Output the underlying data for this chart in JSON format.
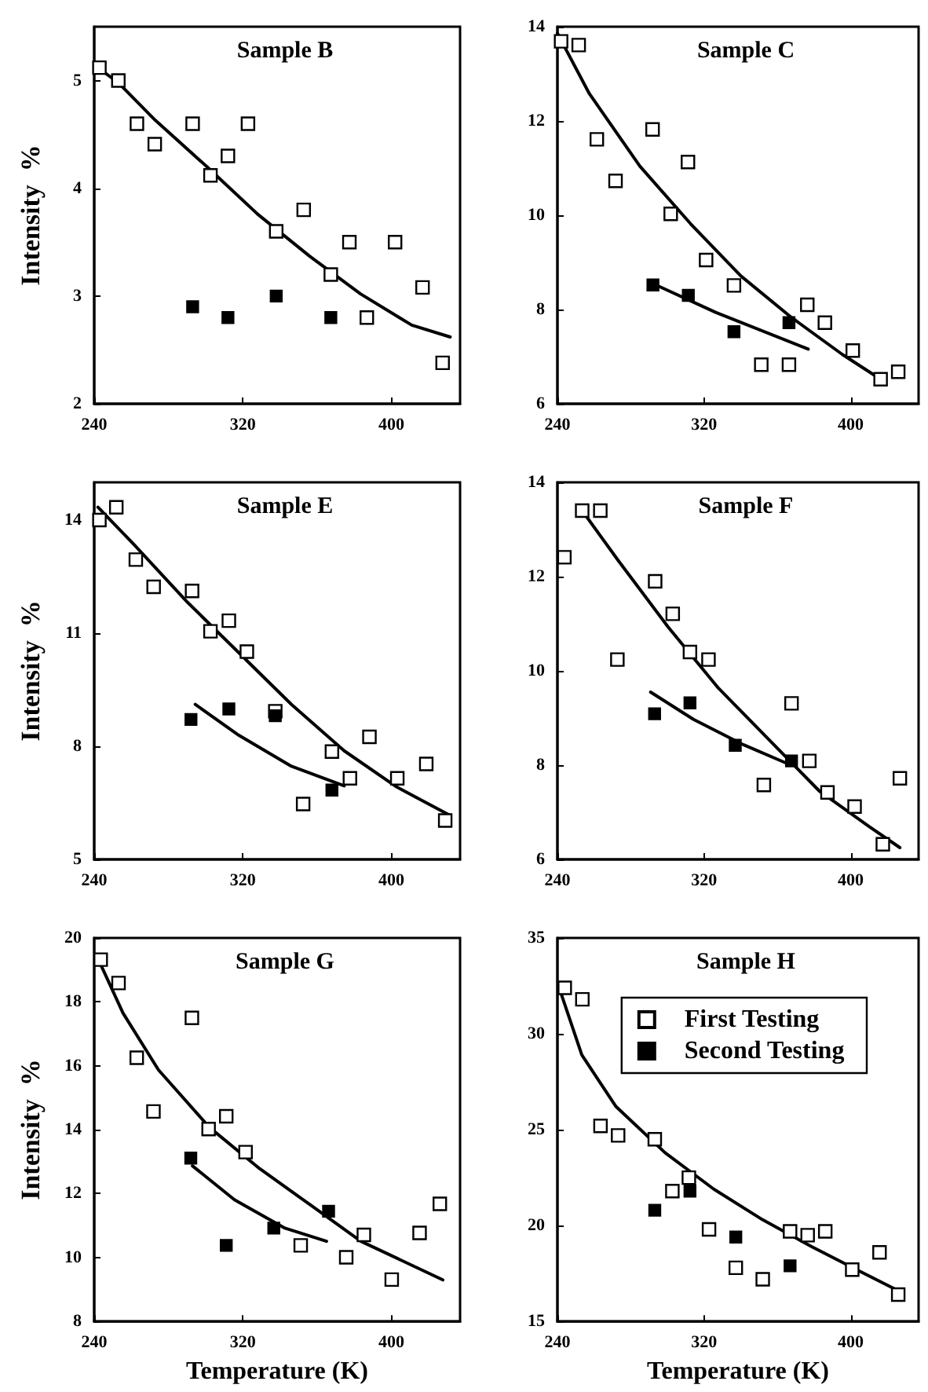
{
  "chart_data": [
    {
      "type": "scatter",
      "title": "Sample B",
      "ylabel": "Intensity  %",
      "marker": "square",
      "xlim": [
        240,
        437
      ],
      "xticks": [
        240,
        320,
        400
      ],
      "ylim": [
        2,
        5.5
      ],
      "yticks": [
        2,
        3,
        4,
        5
      ],
      "series": [
        {
          "color": "#ffffff",
          "x": [
            242.8,
            253,
            263,
            272.6,
            293,
            302.6,
            312,
            322.8,
            338,
            352.8,
            367.4,
            377.4,
            386.8,
            402,
            416.8,
            427.6
          ],
          "values": [
            5.12,
            5.0,
            4.6,
            4.41,
            4.6,
            4.12,
            4.3,
            4.6,
            3.6,
            3.8,
            3.2,
            3.5,
            2.8,
            3.5,
            3.08,
            2.38
          ]
        },
        {
          "color": "#000000",
          "x": [
            293,
            312,
            338,
            367.4
          ],
          "values": [
            2.9,
            2.8,
            3.0,
            2.8
          ]
        },
        {
          "type": "line",
          "marker": "none",
          "color": "#000000",
          "x": [
            242.8,
            253,
            273,
            300.7,
            328,
            356,
            383.4,
            411,
            431.7
          ],
          "values": [
            5.11,
            4.98,
            4.63,
            4.2,
            3.76,
            3.37,
            3.02,
            2.73,
            2.62
          ]
        }
      ]
    },
    {
      "type": "scatter",
      "title": "Sample C",
      "marker": "square",
      "xlim": [
        240,
        437
      ],
      "xticks": [
        240,
        320,
        400
      ],
      "ylim": [
        6,
        14
      ],
      "yticks": [
        6,
        8,
        10,
        12,
        14
      ],
      "series": [
        {
          "color": "#ffffff",
          "x": [
            242,
            251.6,
            261.5,
            271.7,
            291.9,
            301.8,
            311.2,
            321.1,
            336.3,
            351.2,
            366.3,
            376.3,
            385.9,
            401.1,
            416.3,
            425.9
          ],
          "values": [
            13.69,
            13.61,
            11.61,
            10.73,
            11.82,
            10.03,
            11.13,
            9.05,
            8.51,
            6.83,
            6.83,
            8.1,
            7.72,
            7.13,
            6.52,
            6.68
          ]
        },
        {
          "color": "#000000",
          "x": [
            292.1,
            311.4,
            336.3,
            366.3
          ],
          "values": [
            8.52,
            8.3,
            7.53,
            7.72
          ]
        },
        {
          "type": "line",
          "marker": "none",
          "color": "#000000",
          "x": [
            240,
            257.4,
            285,
            312.6,
            340.1,
            367.7,
            395.3,
            416.3
          ],
          "values": [
            13.86,
            12.58,
            11.04,
            9.82,
            8.71,
            7.83,
            7.05,
            6.52
          ]
        },
        {
          "type": "line",
          "marker": "none",
          "color": "#000000",
          "x": [
            292.1,
            326.3,
            376.8
          ],
          "values": [
            8.55,
            7.94,
            7.16
          ]
        }
      ]
    },
    {
      "type": "scatter",
      "title": "Sample E",
      "ylabel": "Intensity  %",
      "marker": "square",
      "xlim": [
        240,
        437
      ],
      "xticks": [
        240,
        320,
        400
      ],
      "ylim": [
        5,
        15
      ],
      "yticks": [
        5,
        8,
        11,
        14
      ],
      "series": [
        {
          "color": "#ffffff",
          "x": [
            242.8,
            251.9,
            262.4,
            272,
            292.7,
            302.6,
            312.5,
            322.2,
            337.5,
            352.5,
            368,
            377.7,
            388.2,
            403.2,
            418.8,
            429
          ],
          "values": [
            14.0,
            14.34,
            12.95,
            12.23,
            12.12,
            11.05,
            11.33,
            10.51,
            8.93,
            6.47,
            7.86,
            7.15,
            8.25,
            7.15,
            7.53,
            6.03
          ]
        },
        {
          "color": "#000000",
          "x": [
            292.1,
            312.5,
            337.5,
            368
          ],
          "values": [
            8.71,
            8.99,
            8.81,
            6.84
          ]
        },
        {
          "type": "line",
          "marker": "none",
          "color": "#000000",
          "x": [
            242,
            261.2,
            289.6,
            317.9,
            346.2,
            374.6,
            402.9,
            431.8
          ],
          "values": [
            14.34,
            13.36,
            11.85,
            10.48,
            9.11,
            7.88,
            6.92,
            6.16
          ]
        },
        {
          "type": "line",
          "marker": "none",
          "color": "#000000",
          "x": [
            294.4,
            317.9,
            346.2,
            374.6
          ],
          "values": [
            9.11,
            8.29,
            7.47,
            6.95
          ]
        }
      ]
    },
    {
      "type": "scatter",
      "title": "Sample F",
      "marker": "square",
      "xlim": [
        240,
        437
      ],
      "xticks": [
        240,
        320,
        400
      ],
      "ylim": [
        6,
        14
      ],
      "yticks": [
        6,
        8,
        10,
        12,
        14
      ],
      "series": [
        {
          "color": "#ffffff",
          "x": [
            243.8,
            253.5,
            263.4,
            272.7,
            293.3,
            302.9,
            312.3,
            322.4,
            352.6,
            367.7,
            377.4,
            387.3,
            402.1,
            417.5,
            426.8
          ],
          "values": [
            12.41,
            13.4,
            13.4,
            10.24,
            11.9,
            11.21,
            10.4,
            10.24,
            7.58,
            9.31,
            8.09,
            7.42,
            7.12,
            6.32,
            7.72
          ]
        },
        {
          "color": "#000000",
          "x": [
            293,
            312.3,
            337,
            367.7
          ],
          "values": [
            9.09,
            9.32,
            8.42,
            8.09
          ]
        },
        {
          "type": "line",
          "marker": "none",
          "color": "#000000",
          "x": [
            253.5,
            273,
            300.4,
            327.9,
            355.4,
            382.9,
            410.3,
            426.8
          ],
          "values": [
            13.4,
            12.35,
            10.93,
            9.63,
            8.54,
            7.45,
            6.69,
            6.25
          ]
        },
        {
          "type": "line",
          "marker": "none",
          "color": "#000000",
          "x": [
            290.8,
            314.2,
            341.6,
            364.4
          ],
          "values": [
            9.55,
            8.97,
            8.43,
            8.05
          ]
        }
      ]
    },
    {
      "type": "scatter",
      "title": "Sample G",
      "xlabel": "Temperature (K)",
      "ylabel": "Intensity  %",
      "marker": "square",
      "xlim": [
        240,
        437
      ],
      "xticks": [
        240,
        320,
        400
      ],
      "ylim": [
        8,
        20
      ],
      "yticks": [
        8,
        10,
        12,
        14,
        16,
        18,
        20
      ],
      "series": [
        {
          "color": "#ffffff",
          "x": [
            243.5,
            253.1,
            262.9,
            271.9,
            292.6,
            301.6,
            311.1,
            321.5,
            351.2,
            375.7,
            385.2,
            400.2,
            415.2,
            426.1
          ],
          "values": [
            19.32,
            18.59,
            16.25,
            14.57,
            17.5,
            14.02,
            14.42,
            13.3,
            10.38,
            10.01,
            10.71,
            9.31,
            10.77,
            11.68
          ]
        },
        {
          "color": "#000000",
          "x": [
            292,
            311.1,
            336.7,
            366.2
          ],
          "values": [
            13.11,
            10.38,
            10.92,
            11.45
          ]
        },
        {
          "type": "line",
          "marker": "none",
          "color": "#000000",
          "x": [
            241.4,
            255.5,
            274.6,
            301.9,
            329.1,
            356.3,
            383.6,
            427.7
          ],
          "values": [
            19.43,
            17.65,
            15.87,
            14.08,
            12.78,
            11.65,
            10.51,
            9.3
          ]
        },
        {
          "type": "line",
          "marker": "none",
          "color": "#000000",
          "x": [
            292.9,
            315.5,
            342.7,
            365.1
          ],
          "values": [
            12.87,
            11.81,
            10.92,
            10.51
          ]
        }
      ]
    },
    {
      "type": "scatter",
      "title": "Sample H",
      "xlabel": "Temperature (K)",
      "legend": "top right",
      "marker": "square",
      "xlim": [
        240,
        437
      ],
      "xticks": [
        240,
        320,
        400
      ],
      "ylim": [
        15,
        35
      ],
      "yticks": [
        15,
        20,
        25,
        30,
        35
      ],
      "series": [
        {
          "name": "First Testing",
          "color": "#ffffff",
          "x": [
            244,
            253.6,
            263.5,
            273.1,
            293.1,
            302.7,
            311.7,
            322.7,
            337.3,
            352,
            366.9,
            376.5,
            386.1,
            400.8,
            415.7,
            425.9
          ],
          "values": [
            32.4,
            31.8,
            25.2,
            24.7,
            24.5,
            21.8,
            22.5,
            19.8,
            17.8,
            17.2,
            19.7,
            19.5,
            19.7,
            17.7,
            18.6,
            16.4
          ]
        },
        {
          "name": "Second Testing",
          "color": "#000000",
          "x": [
            293.1,
            312.3,
            337.3,
            366.9
          ],
          "values": [
            20.8,
            21.8,
            19.4,
            17.9
          ]
        },
        {
          "type": "line",
          "marker": "none",
          "color": "#000000",
          "x": [
            241.3,
            253.3,
            272,
            298.7,
            325.3,
            352,
            378.7,
            405.3,
            428
          ],
          "values": [
            32.3,
            28.9,
            26.2,
            23.8,
            21.9,
            20.3,
            18.9,
            17.6,
            16.5
          ]
        }
      ]
    }
  ]
}
